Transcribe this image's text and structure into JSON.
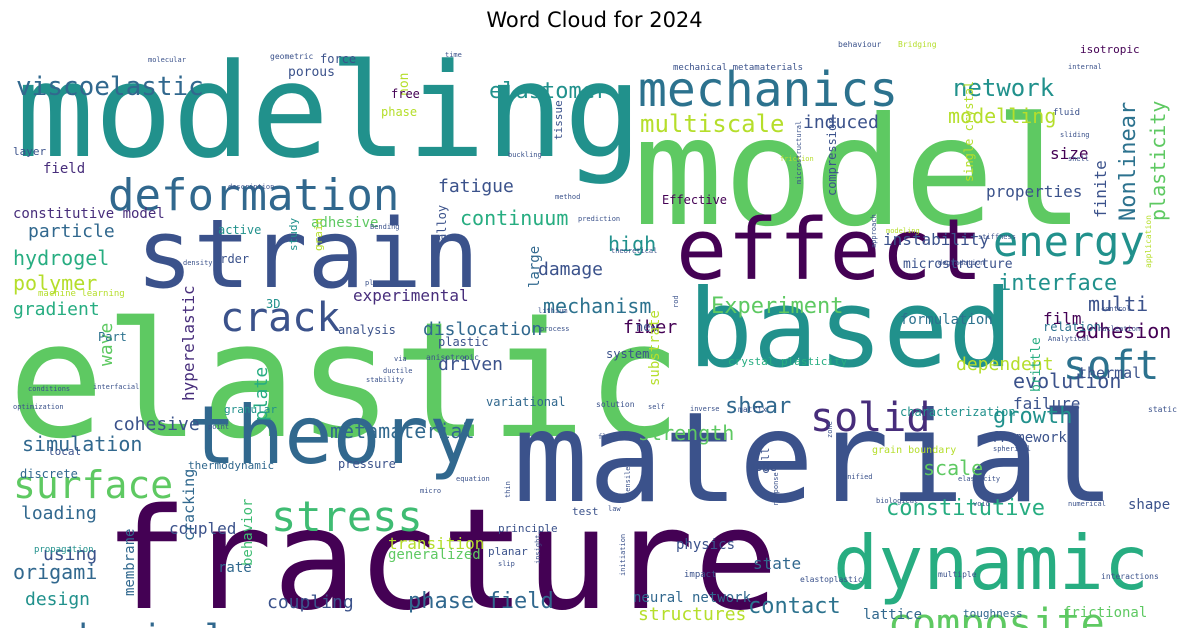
{
  "title": "Word Cloud for 2024",
  "palette": "viridis",
  "words": [
    {
      "text": "elastic",
      "color": "#5ec962"
    },
    {
      "text": "model",
      "color": "#5ec962"
    },
    {
      "text": "fracture",
      "color": "#440154"
    },
    {
      "text": "material",
      "color": "#3b528b"
    },
    {
      "text": "modeling",
      "color": "#21918c"
    },
    {
      "text": "based",
      "color": "#21918c"
    },
    {
      "text": "strain",
      "color": "#3b528b"
    },
    {
      "text": "effect",
      "color": "#440154"
    },
    {
      "text": "dynamic",
      "color": "#27ad81"
    },
    {
      "text": "theory",
      "color": "#31688e"
    },
    {
      "text": "mechanics",
      "color": "#2c728e"
    },
    {
      "text": "deformation",
      "color": "#31688e"
    },
    {
      "text": "composite",
      "color": "#5ec962"
    },
    {
      "text": "stress",
      "color": "#3fbc73"
    },
    {
      "text": "mechanical",
      "color": "#31688e"
    },
    {
      "text": "surface",
      "color": "#5ec962"
    },
    {
      "text": "crack",
      "color": "#3b528b"
    },
    {
      "text": "energy",
      "color": "#21918c"
    },
    {
      "text": "solid",
      "color": "#472d7b"
    },
    {
      "text": "soft",
      "color": "#2c728e"
    },
    {
      "text": "viscoelastic",
      "color": "#31688e"
    },
    {
      "text": "elastomer",
      "color": "#21918c"
    },
    {
      "text": "multiscale",
      "color": "#b5de2b"
    },
    {
      "text": "network",
      "color": "#21918c"
    },
    {
      "text": "modelling",
      "color": "#b5de2b"
    },
    {
      "text": "induced",
      "color": "#3b528b"
    },
    {
      "text": "Nonlinear",
      "color": "#2c728e"
    },
    {
      "text": "plasticity",
      "color": "#5ec962"
    },
    {
      "text": "finite",
      "color": "#3b528b"
    },
    {
      "text": "size",
      "color": "#440154"
    },
    {
      "text": "fatigue",
      "color": "#3b528b"
    },
    {
      "text": "properties",
      "color": "#3b528b"
    },
    {
      "text": "continuum",
      "color": "#27ad81"
    },
    {
      "text": "interface",
      "color": "#21918c"
    },
    {
      "text": "high",
      "color": "#21918c"
    },
    {
      "text": "hydrogel",
      "color": "#27ad81"
    },
    {
      "text": "polymer",
      "color": "#b5de2b"
    },
    {
      "text": "gradient",
      "color": "#27ad81"
    },
    {
      "text": "particle",
      "color": "#31688e"
    },
    {
      "text": "constitutive model",
      "color": "#472d7b"
    },
    {
      "text": "adhesive",
      "color": "#5ec962"
    },
    {
      "text": "damage",
      "color": "#3b528b"
    },
    {
      "text": "Experiment",
      "color": "#5ec962"
    },
    {
      "text": "mechanism",
      "color": "#2c728e"
    },
    {
      "text": "experimental",
      "color": "#472d7b"
    },
    {
      "text": "multi",
      "color": "#3b528b"
    },
    {
      "text": "adhesion",
      "color": "#440154"
    },
    {
      "text": "dislocation",
      "color": "#31688e"
    },
    {
      "text": "fiber",
      "color": "#440154"
    },
    {
      "text": "film",
      "color": "#440154"
    },
    {
      "text": "formulation",
      "color": "#2c728e"
    },
    {
      "text": "evolution",
      "color": "#3b528b"
    },
    {
      "text": "growth",
      "color": "#21918c"
    },
    {
      "text": "shear",
      "color": "#31688e"
    },
    {
      "text": "metamaterial",
      "color": "#31688e"
    },
    {
      "text": "strength",
      "color": "#5ec962"
    },
    {
      "text": "simulation",
      "color": "#31688e"
    },
    {
      "text": "cohesive",
      "color": "#3b528b"
    },
    {
      "text": "loading",
      "color": "#31688e"
    },
    {
      "text": "coupled",
      "color": "#3b528b"
    },
    {
      "text": "using",
      "color": "#3b528b"
    },
    {
      "text": "origami",
      "color": "#31688e"
    },
    {
      "text": "design",
      "color": "#21918c"
    },
    {
      "text": "constitutive",
      "color": "#27ad81"
    },
    {
      "text": "scale",
      "color": "#5ec962"
    },
    {
      "text": "failure",
      "color": "#3b528b"
    },
    {
      "text": "coupling",
      "color": "#3b528b"
    },
    {
      "text": "phase field",
      "color": "#31688e"
    },
    {
      "text": "structures",
      "color": "#b5de2b"
    },
    {
      "text": "contact",
      "color": "#2c728e"
    },
    {
      "text": "neural network",
      "color": "#31688e"
    },
    {
      "text": "wave",
      "color": "#5ec962"
    },
    {
      "text": "hyperelastic",
      "color": "#472d7b"
    },
    {
      "text": "plate",
      "color": "#27ad81"
    },
    {
      "text": "driven",
      "color": "#3b528b"
    },
    {
      "text": "dependent",
      "color": "#b5de2b"
    },
    {
      "text": "thermal",
      "color": "#3b528b"
    },
    {
      "text": "instability",
      "color": "#3b528b"
    },
    {
      "text": "microstructure",
      "color": "#3b528b"
    },
    {
      "text": "framework",
      "color": "#3b528b"
    },
    {
      "text": "state",
      "color": "#31688e"
    },
    {
      "text": "shape",
      "color": "#3b528b"
    },
    {
      "text": "physics",
      "color": "#3b528b"
    },
    {
      "text": "transition",
      "color": "#b5de2b"
    },
    {
      "text": "generalized",
      "color": "#5ec962"
    },
    {
      "text": "cracking",
      "color": "#31688e"
    },
    {
      "text": "membrane",
      "color": "#31688e"
    },
    {
      "text": "behavior",
      "color": "#3fbc73"
    },
    {
      "text": "rate",
      "color": "#31688e"
    },
    {
      "text": "lattice",
      "color": "#31688e"
    },
    {
      "text": "toughness",
      "color": "#31688e"
    },
    {
      "text": "frictional",
      "color": "#5ec962"
    },
    {
      "text": "porous",
      "color": "#3b528b"
    },
    {
      "text": "force",
      "color": "#3b528b"
    },
    {
      "text": "non",
      "color": "#b5de2b"
    },
    {
      "text": "free",
      "color": "#440154"
    },
    {
      "text": "phase",
      "color": "#b5de2b"
    },
    {
      "text": "field",
      "color": "#472d7b"
    },
    {
      "text": "layer",
      "color": "#3b528b"
    },
    {
      "text": "tissue",
      "color": "#3b528b"
    },
    {
      "text": "isotropic",
      "color": "#440154"
    },
    {
      "text": "fluid",
      "color": "#3b528b"
    },
    {
      "text": "compression",
      "color": "#3b528b"
    },
    {
      "text": "single crystal",
      "color": "#b5de2b"
    },
    {
      "text": "Effective",
      "color": "#440154"
    },
    {
      "text": "alloy",
      "color": "#3b528b"
    },
    {
      "text": "active",
      "color": "#21918c"
    },
    {
      "text": "study",
      "color": "#21918c"
    },
    {
      "text": "grain",
      "color": "#b5de2b"
    },
    {
      "text": "order",
      "color": "#3b528b"
    },
    {
      "text": "large",
      "color": "#31688e"
    },
    {
      "text": "3D",
      "color": "#21918c"
    },
    {
      "text": "plastic",
      "color": "#3b528b"
    },
    {
      "text": "analysis",
      "color": "#3b528b"
    },
    {
      "text": "Part",
      "color": "#2c728e"
    },
    {
      "text": "new",
      "color": "#3b528b"
    },
    {
      "text": "system",
      "color": "#3b528b"
    },
    {
      "text": "substrate",
      "color": "#b5de2b"
    },
    {
      "text": "brittle",
      "color": "#27ad81"
    },
    {
      "text": "relation",
      "color": "#2c728e"
    },
    {
      "text": "crystal plasticity",
      "color": "#27ad81"
    },
    {
      "text": "granular",
      "color": "#21918c"
    },
    {
      "text": "variational",
      "color": "#31688e"
    },
    {
      "text": "mode",
      "color": "#3b528b"
    },
    {
      "text": "characterization",
      "color": "#21918c"
    },
    {
      "text": "local",
      "color": "#3b528b"
    },
    {
      "text": "thermodynamic",
      "color": "#31688e"
    },
    {
      "text": "pressure",
      "color": "#3b528b"
    },
    {
      "text": "discrete",
      "color": "#31688e"
    },
    {
      "text": "grain boundary",
      "color": "#b5de2b"
    },
    {
      "text": "cell",
      "color": "#3b528b"
    },
    {
      "text": "test",
      "color": "#3b528b"
    },
    {
      "text": "principle",
      "color": "#3b528b"
    },
    {
      "text": "planar",
      "color": "#3b528b"
    },
    {
      "text": "propagation",
      "color": "#21918c"
    },
    {
      "text": "machine learning",
      "color": "#b5de2b"
    },
    {
      "text": "elastoplastic",
      "color": "#3b528b"
    },
    {
      "text": "impact",
      "color": "#3b528b"
    },
    {
      "text": "multiple",
      "color": "#3b528b"
    },
    {
      "text": "interactions",
      "color": "#3b528b"
    },
    {
      "text": "solution",
      "color": "#3b528b"
    },
    {
      "text": "matrix",
      "color": "#3b528b"
    },
    {
      "text": "static",
      "color": "#3b528b"
    },
    {
      "text": "mechanical metamaterials",
      "color": "#3b528b"
    },
    {
      "text": "geometric",
      "color": "#3b528b"
    },
    {
      "text": "molecular",
      "color": "#3b528b"
    },
    {
      "text": "behaviour",
      "color": "#3b528b"
    },
    {
      "text": "Bridging",
      "color": "#b5de2b"
    },
    {
      "text": "internal",
      "color": "#3b528b"
    },
    {
      "text": "time",
      "color": "#3b528b"
    },
    {
      "text": "sliding",
      "color": "#3b528b"
    },
    {
      "text": "shell",
      "color": "#3b528b"
    },
    {
      "text": "friction",
      "color": "#b5de2b"
    },
    {
      "text": "buckling",
      "color": "#3b528b"
    },
    {
      "text": "microstructural",
      "color": "#3b528b"
    },
    {
      "text": "method",
      "color": "#3b528b"
    },
    {
      "text": "description",
      "color": "#3b528b"
    },
    {
      "text": "prediction",
      "color": "#3b528b"
    },
    {
      "text": "approach",
      "color": "#3b528b"
    },
    {
      "text": "modeling",
      "color": "#b5de2b"
    },
    {
      "text": "stiffness",
      "color": "#3b528b"
    },
    {
      "text": "application",
      "color": "#b5de2b"
    },
    {
      "text": "Bending",
      "color": "#3b528b"
    },
    {
      "text": "theoretical",
      "color": "#3b528b"
    },
    {
      "text": "density",
      "color": "#3b528b"
    },
    {
      "text": "degradation",
      "color": "#3b528b"
    },
    {
      "text": "plane",
      "color": "#3b528b"
    },
    {
      "text": "rod",
      "color": "#3b528b"
    },
    {
      "text": "nucleation",
      "color": "#3b528b"
    },
    {
      "text": "lithium",
      "color": "#3b528b"
    },
    {
      "text": "control",
      "color": "#3b528b"
    },
    {
      "text": "process",
      "color": "#3b528b"
    },
    {
      "text": "Analytical",
      "color": "#3b528b"
    },
    {
      "text": "via",
      "color": "#3b528b"
    },
    {
      "text": "ductile",
      "color": "#3b528b"
    },
    {
      "text": "anisotropic",
      "color": "#3b528b"
    },
    {
      "text": "conditions",
      "color": "#3b528b"
    },
    {
      "text": "interfacial",
      "color": "#3b528b"
    },
    {
      "text": "stability",
      "color": "#3b528b"
    },
    {
      "text": "optimization",
      "color": "#3b528b"
    },
    {
      "text": "point",
      "color": "#3b528b"
    },
    {
      "text": "flexible",
      "color": "#3b528b"
    },
    {
      "text": "inverse",
      "color": "#3b528b"
    },
    {
      "text": "self",
      "color": "#3b528b"
    },
    {
      "text": "spherical",
      "color": "#3b528b"
    },
    {
      "text": "elasticity",
      "color": "#3b528b"
    },
    {
      "text": "zone",
      "color": "#3b528b"
    },
    {
      "text": "unified",
      "color": "#3b528b"
    },
    {
      "text": "biological",
      "color": "#3b528b"
    },
    {
      "text": "void",
      "color": "#3b528b"
    },
    {
      "text": "numerical",
      "color": "#3b528b"
    },
    {
      "text": "response",
      "color": "#3b528b"
    },
    {
      "text": "tensile",
      "color": "#3b528b"
    },
    {
      "text": "law",
      "color": "#3b528b"
    },
    {
      "text": "thin",
      "color": "#3b528b"
    },
    {
      "text": "equation",
      "color": "#3b528b"
    },
    {
      "text": "micro",
      "color": "#3b528b"
    },
    {
      "text": "insight",
      "color": "#3b528b"
    },
    {
      "text": "slip",
      "color": "#3b528b"
    },
    {
      "text": "initiation",
      "color": "#3b528b"
    }
  ]
}
